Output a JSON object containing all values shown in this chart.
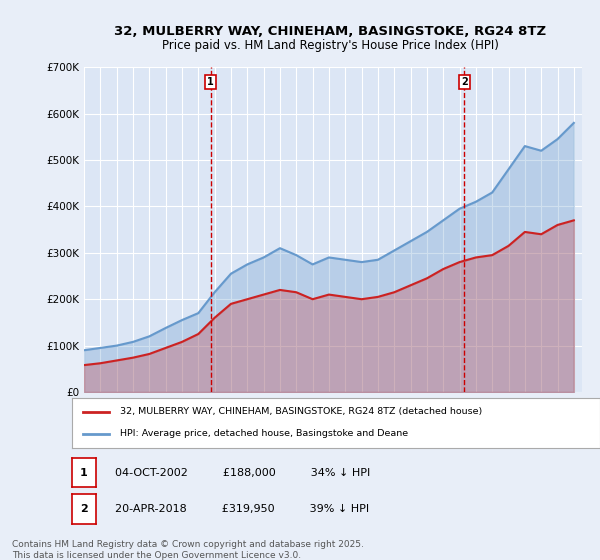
{
  "title": "32, MULBERRY WAY, CHINEHAM, BASINGSTOKE, RG24 8TZ",
  "subtitle": "Price paid vs. HM Land Registry's House Price Index (HPI)",
  "hpi_label": "HPI: Average price, detached house, Basingstoke and Deane",
  "price_label": "32, MULBERRY WAY, CHINEHAM, BASINGSTOKE, RG24 8TZ (detached house)",
  "footer": "Contains HM Land Registry data © Crown copyright and database right 2025.\nThis data is licensed under the Open Government Licence v3.0.",
  "marker1_date": "04-OCT-2002",
  "marker1_price": "£188,000",
  "marker1_hpi": "34% ↓ HPI",
  "marker2_date": "20-APR-2018",
  "marker2_price": "£319,950",
  "marker2_hpi": "39% ↓ HPI",
  "hpi_color": "#6699cc",
  "price_color": "#cc2222",
  "marker_color": "#cc0000",
  "bg_color": "#e8eef8",
  "plot_bg": "#dce6f5",
  "ylim": [
    0,
    700000
  ],
  "xlim_start": 1995.0,
  "xlim_end": 2025.5,
  "hpi_years": [
    1995,
    1996,
    1997,
    1998,
    1999,
    2000,
    2001,
    2002,
    2003,
    2004,
    2005,
    2006,
    2007,
    2008,
    2009,
    2010,
    2011,
    2012,
    2013,
    2014,
    2015,
    2016,
    2017,
    2018,
    2019,
    2020,
    2021,
    2022,
    2023,
    2024,
    2025
  ],
  "hpi_values": [
    90000,
    95000,
    100000,
    108000,
    120000,
    138000,
    155000,
    170000,
    215000,
    255000,
    275000,
    290000,
    310000,
    295000,
    275000,
    290000,
    285000,
    280000,
    285000,
    305000,
    325000,
    345000,
    370000,
    395000,
    410000,
    430000,
    480000,
    530000,
    520000,
    545000,
    580000
  ],
  "price_years": [
    1995,
    1996,
    1997,
    1998,
    1999,
    2000,
    2001,
    2002,
    2003,
    2004,
    2005,
    2006,
    2007,
    2008,
    2009,
    2010,
    2011,
    2012,
    2013,
    2014,
    2015,
    2016,
    2017,
    2018,
    2019,
    2020,
    2021,
    2022,
    2023,
    2024,
    2025
  ],
  "price_values": [
    58000,
    62000,
    68000,
    74000,
    82000,
    95000,
    108000,
    125000,
    160000,
    190000,
    200000,
    210000,
    220000,
    215000,
    200000,
    210000,
    205000,
    200000,
    205000,
    215000,
    230000,
    245000,
    265000,
    280000,
    290000,
    295000,
    315000,
    345000,
    340000,
    360000,
    370000
  ],
  "marker1_x": 2002.75,
  "marker2_x": 2018.3
}
